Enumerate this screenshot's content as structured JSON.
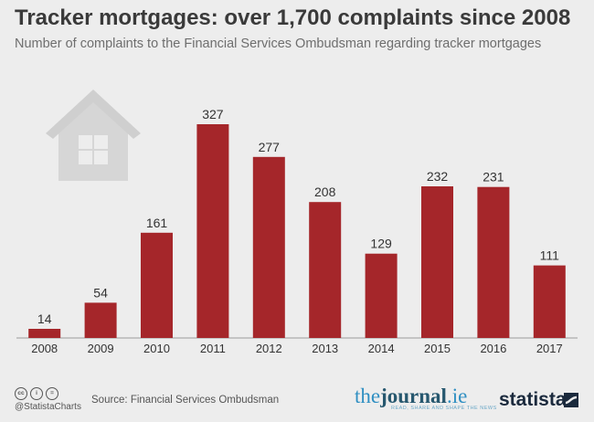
{
  "header": {
    "title": "Tracker mortgages: over 1,700 complaints since 2008",
    "subtitle": "Number of complaints to the Financial Services Ombudsman regarding tracker mortgages"
  },
  "chart_data": {
    "type": "bar",
    "title": "Tracker mortgages: over 1,700 complaints since 2008",
    "subtitle": "Number of complaints to the Financial Services Ombudsman regarding tracker mortgages",
    "categories": [
      "2008",
      "2009",
      "2010",
      "2011",
      "2012",
      "2013",
      "2014",
      "2015",
      "2016",
      "2017"
    ],
    "values": [
      14,
      54,
      161,
      327,
      277,
      208,
      129,
      232,
      231,
      111
    ],
    "data_labels": [
      "14",
      "54",
      "161",
      "327",
      "277",
      "208",
      "129",
      "232",
      "231",
      "111"
    ],
    "xlabel": "",
    "ylabel": "",
    "ylim": [
      0,
      327
    ],
    "grid": false,
    "legend": "none",
    "bar_color": "#a5262a"
  },
  "footer": {
    "cc_icons": [
      "cc",
      "i",
      "="
    ],
    "handle": "@StatistaCharts",
    "source": "Source: Financial Services Ombudsman",
    "partner_logo": {
      "prefix": "the",
      "bold": "journal",
      "suffix": ".ie",
      "tagline": "READ, SHARE AND SHAPE THE NEWS"
    },
    "brand": "statista"
  },
  "icons": {
    "decoration": "house-icon",
    "brand": "statista-logo-icon"
  }
}
